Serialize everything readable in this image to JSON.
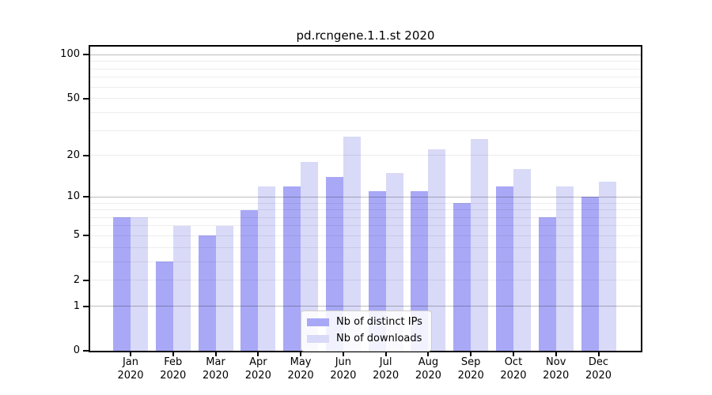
{
  "window": {
    "background": "#ffffff"
  },
  "chart_data": {
    "type": "bar",
    "title": "pd.rcngene.1.1.st 2020",
    "categories": [
      "Jan",
      "Feb",
      "Mar",
      "Apr",
      "May",
      "Jun",
      "Jul",
      "Aug",
      "Sep",
      "Oct",
      "Nov",
      "Dec"
    ],
    "category_year": "2020",
    "series": [
      {
        "name": "Nb of distinct IPs",
        "color": "#a8a8f6",
        "values": [
          7,
          3,
          5,
          8,
          12,
          14,
          11,
          11,
          9,
          12,
          7,
          10
        ]
      },
      {
        "name": "Nb of downloads",
        "color": "#d9d9f8",
        "values": [
          7,
          6,
          6,
          12,
          18,
          27,
          15,
          22,
          26,
          16,
          12,
          13
        ]
      }
    ],
    "yscale": "log10(1+y)",
    "ylim": [
      0,
      115
    ],
    "ytick_labels": [
      "0",
      "1",
      "2",
      "5",
      "10",
      "20",
      "50",
      "100"
    ],
    "ytick_values": [
      0,
      1,
      2,
      5,
      10,
      20,
      50,
      100
    ],
    "major_gridlines": [
      1,
      10,
      100
    ],
    "minor_gridlines": [
      2,
      3,
      4,
      5,
      6,
      7,
      8,
      9,
      20,
      30,
      40,
      50,
      60,
      70,
      80,
      90
    ],
    "grid_on": true,
    "legend_position": "inside lower-center",
    "axis_color": "#000000",
    "major_grid_color": "#bcbcbc",
    "minor_grid_color": "#ebebeb"
  }
}
